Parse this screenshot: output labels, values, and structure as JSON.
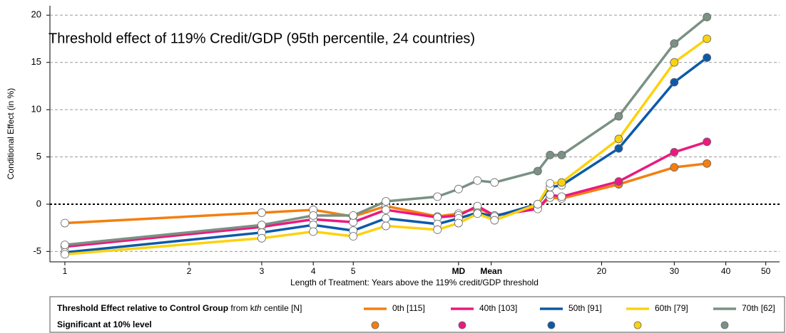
{
  "chart_data": {
    "type": "line",
    "title": "Threshold effect of 119% Credit/GDP (95th percentile, 24 countries)",
    "ylabel": "Conditional Effect (in %)",
    "xlabel": "Length of Treatment: Years above the 119% credit/GDP threshold",
    "xscale": "log",
    "x": [
      1,
      3,
      4,
      5,
      6,
      8,
      9,
      10,
      11,
      14,
      15,
      16,
      22,
      30,
      36
    ],
    "xlim": [
      0.92,
      54
    ],
    "xticks": [
      1,
      2,
      3,
      4,
      5,
      {
        "value": 9,
        "label": "MD"
      },
      {
        "value": 10.8,
        "label": "Mean"
      },
      20,
      30,
      40,
      50
    ],
    "ylim": [
      -6.1,
      21
    ],
    "yticks": [
      -5,
      0,
      5,
      10,
      15,
      20
    ],
    "grid": true,
    "legend_title": [
      "Threshold Effect relative to Control Group",
      " from k",
      "th",
      " centile [N]"
    ],
    "significance_label": "Significant at 10% level",
    "series": [
      {
        "name": "0th [115]",
        "color": "#f47f0f",
        "values": [
          -2.0,
          -0.9,
          -0.6,
          -1.3,
          -0.2,
          -1.3,
          -1.0,
          -0.4,
          -1.2,
          -0.4,
          0.7,
          0.6,
          2.1,
          3.9,
          4.3
        ],
        "significant": [
          false,
          false,
          false,
          false,
          false,
          false,
          false,
          false,
          false,
          false,
          false,
          false,
          true,
          true,
          true
        ]
      },
      {
        "name": "40th [103]",
        "color": "#ea1a7f",
        "values": [
          -4.5,
          -2.4,
          -1.6,
          -1.9,
          -0.6,
          -1.4,
          -1.2,
          -0.2,
          -1.2,
          -0.5,
          1.0,
          0.8,
          2.4,
          5.5,
          6.6
        ],
        "significant": [
          false,
          false,
          false,
          false,
          false,
          false,
          false,
          false,
          false,
          false,
          false,
          false,
          true,
          true,
          true
        ]
      },
      {
        "name": "50th [91]",
        "color": "#0b5aa8",
        "values": [
          -5.1,
          -3.0,
          -2.2,
          -2.8,
          -1.5,
          -2.1,
          -1.5,
          -0.9,
          -1.3,
          0.0,
          1.8,
          2.0,
          5.9,
          12.9,
          15.5
        ],
        "significant": [
          false,
          false,
          false,
          false,
          false,
          false,
          false,
          false,
          false,
          false,
          false,
          false,
          true,
          true,
          true
        ]
      },
      {
        "name": "60th [79]",
        "color": "#fcd20e",
        "values": [
          -5.3,
          -3.6,
          -2.9,
          -3.4,
          -2.3,
          -2.7,
          -2.0,
          -1.0,
          -1.7,
          0.0,
          2.2,
          2.3,
          6.9,
          15.0,
          17.5
        ],
        "significant": [
          false,
          false,
          false,
          false,
          false,
          false,
          false,
          false,
          false,
          false,
          false,
          true,
          true,
          true,
          true
        ]
      },
      {
        "name": "70th [62]",
        "color": "#7a9183",
        "values": [
          -4.3,
          -2.2,
          -1.2,
          -1.2,
          0.3,
          0.8,
          1.6,
          2.5,
          2.3,
          3.5,
          5.2,
          5.2,
          9.3,
          17.0,
          19.8
        ],
        "significant": [
          false,
          false,
          false,
          false,
          false,
          false,
          false,
          false,
          false,
          true,
          true,
          true,
          true,
          true,
          true
        ]
      }
    ]
  }
}
